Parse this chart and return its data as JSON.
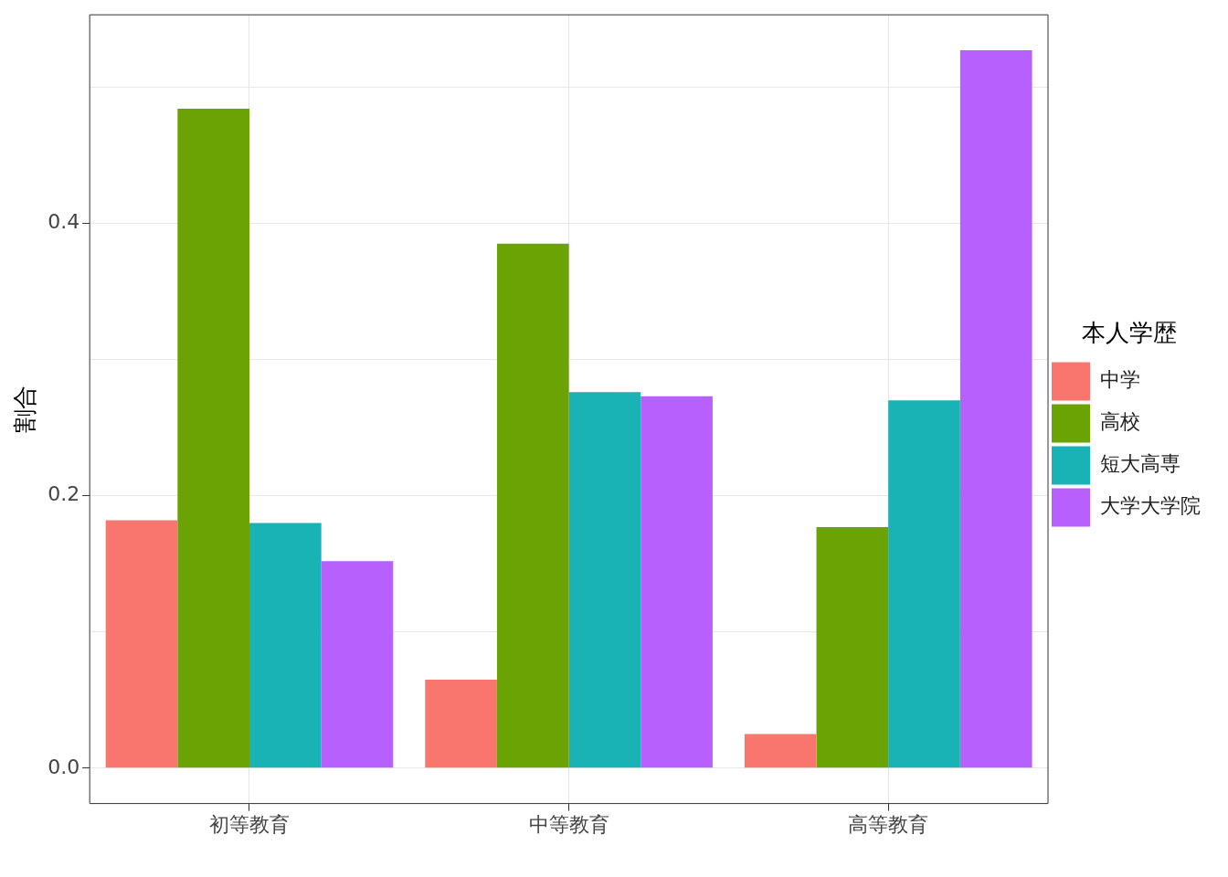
{
  "chart_data": {
    "type": "bar",
    "ylabel": "割合",
    "legend_title": "本人学歴",
    "categories": [
      "初等教育",
      "中等教育",
      "高等教育"
    ],
    "series": [
      {
        "name": "中学",
        "color": "#f8766d",
        "values": [
          0.182,
          0.065,
          0.025
        ]
      },
      {
        "name": "高校",
        "color": "#6ba304",
        "values": [
          0.484,
          0.385,
          0.177
        ]
      },
      {
        "name": "短大高専",
        "color": "#19b3b6",
        "values": [
          0.18,
          0.276,
          0.27
        ]
      },
      {
        "name": "大学大学院",
        "color": "#b760fe",
        "values": [
          0.152,
          0.273,
          0.527
        ]
      }
    ],
    "ylim": [
      -0.026,
      0.553
    ],
    "yticks": [
      {
        "value": 0,
        "label": "0.0"
      },
      {
        "value": 0.1,
        "label": null
      },
      {
        "value": 0.2,
        "label": "0.2"
      },
      {
        "value": 0.3,
        "label": null
      },
      {
        "value": 0.4,
        "label": "0.4"
      },
      {
        "value": 0.5,
        "label": null
      }
    ],
    "grid": true,
    "legend": "right"
  }
}
